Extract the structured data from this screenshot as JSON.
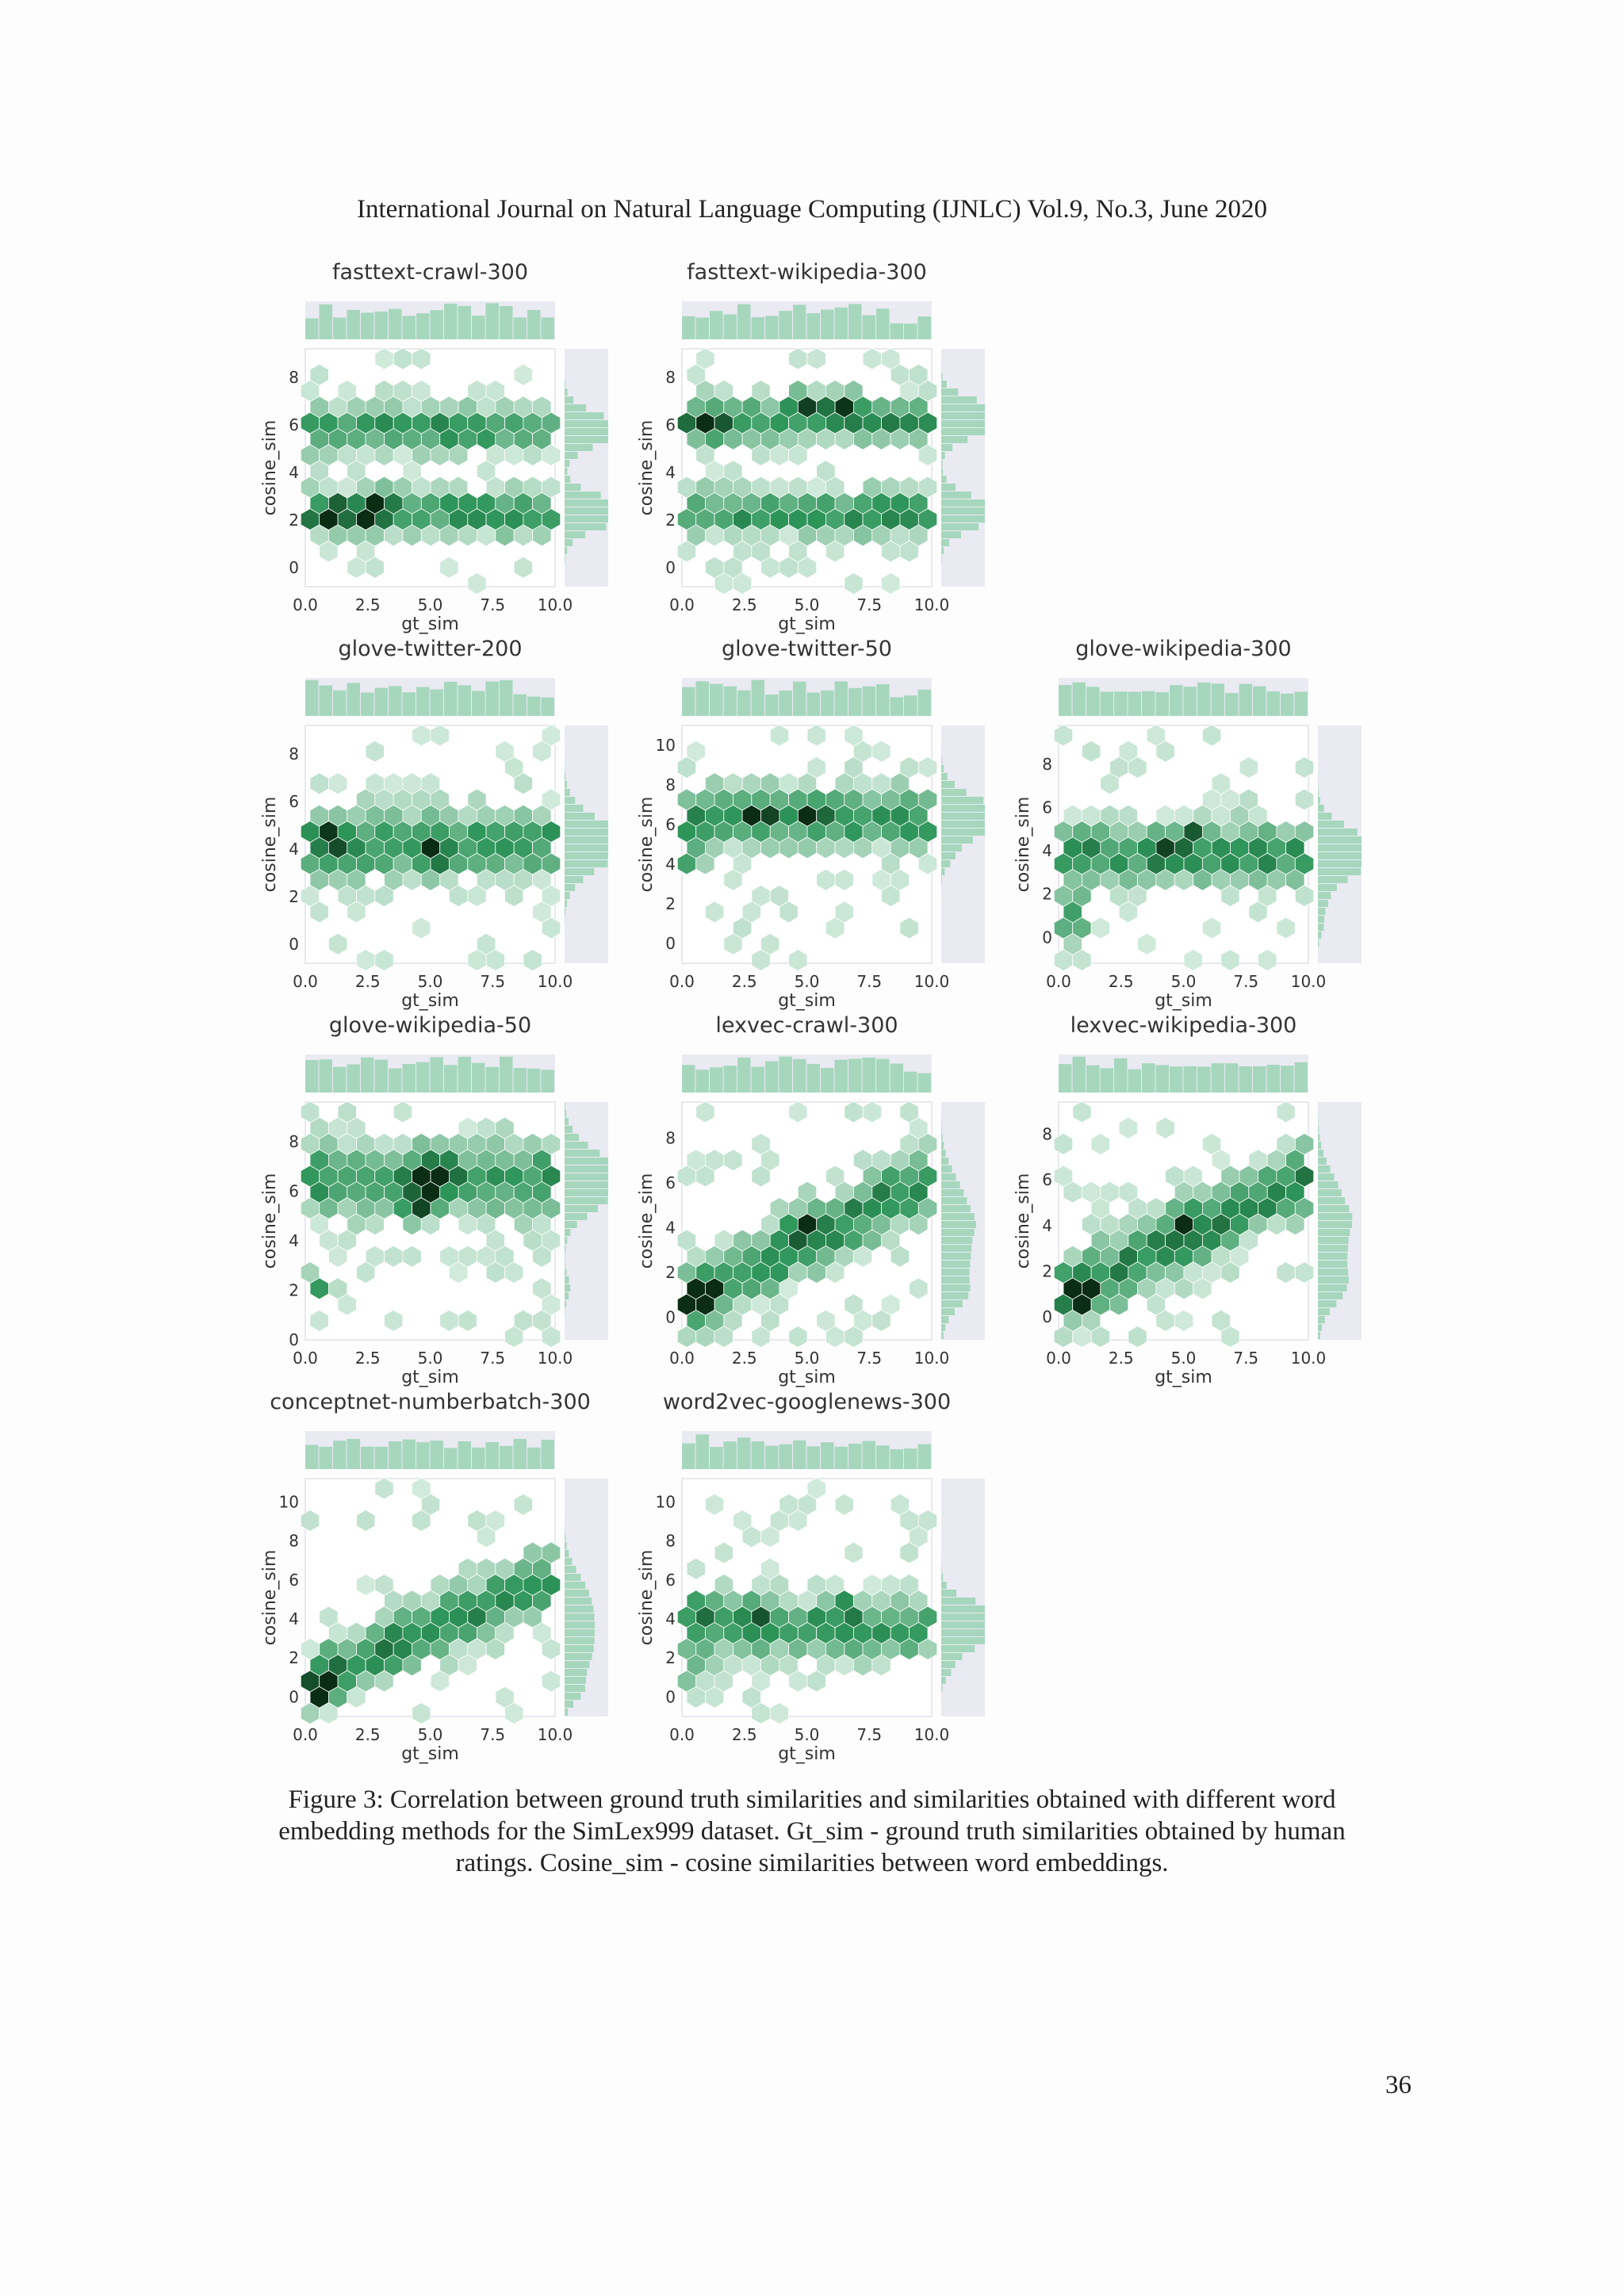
{
  "header": {
    "text": "International Journal on Natural Language Computing (IJNLC) Vol.9, No.3, June 2020"
  },
  "caption": {
    "text": "Figure 3: Correlation between ground truth similarities and similarities obtained with different word embedding methods for the SimLex999 dataset. Gt_sim - ground truth similarities obtained by human ratings. Cosine_sim - cosine similarities between word embeddings."
  },
  "page_number": "36",
  "colors": {
    "hex_light": "#e6f5ec",
    "hex_dark": "#0a2d14",
    "marginal_fill": "#a6d7bd",
    "marginal_bg": "#eaeaf2"
  },
  "chart_data": [
    {
      "type": "heatmap",
      "title": "fasttext-crawl-300",
      "xlabel": "gt_sim",
      "ylabel": "cosine_sim",
      "xticks": [
        "0.0",
        "2.5",
        "5.0",
        "7.5",
        "10.0"
      ],
      "yticks": [
        "0",
        "2",
        "4",
        "6",
        "8"
      ],
      "xlim": [
        0,
        10
      ],
      "ylim": [
        -0.8,
        9.2
      ],
      "pattern": "two-bands",
      "peaks": [
        [
          1,
          2.3
        ],
        [
          2.5,
          2.3
        ],
        [
          3,
          2.7
        ]
      ],
      "band_centers": [
        2.3,
        5.8
      ],
      "marginal": "bimodal"
    },
    {
      "type": "heatmap",
      "title": "fasttext-wikipedia-300",
      "xlabel": "gt_sim",
      "ylabel": "cosine_sim",
      "xticks": [
        "0.0",
        "2.5",
        "5.0",
        "7.5",
        "10.0"
      ],
      "yticks": [
        "0",
        "2",
        "4",
        "6",
        "8"
      ],
      "xlim": [
        0,
        10
      ],
      "ylim": [
        -0.8,
        9.2
      ],
      "pattern": "two-bands",
      "peaks": [
        [
          5,
          6.9
        ],
        [
          6.5,
          6.9
        ],
        [
          1,
          6
        ]
      ],
      "band_centers": [
        2.3,
        6.2
      ],
      "marginal": "bimodal"
    },
    {
      "type": "heatmap",
      "title": "glove-twitter-200",
      "xlabel": "gt_sim",
      "ylabel": "cosine_sim",
      "xticks": [
        "0.0",
        "2.5",
        "5.0",
        "7.5",
        "10.0"
      ],
      "yticks": [
        "0",
        "2",
        "4",
        "6",
        "8"
      ],
      "xlim": [
        0,
        10
      ],
      "ylim": [
        -0.8,
        9.2
      ],
      "pattern": "band",
      "peaks": [
        [
          1,
          4.6
        ],
        [
          5,
          3.9
        ]
      ],
      "band_centers": [
        4.2
      ],
      "marginal": "unimodal"
    },
    {
      "type": "heatmap",
      "title": "glove-twitter-50",
      "xlabel": "gt_sim",
      "ylabel": "cosine_sim",
      "xticks": [
        "0.0",
        "2.5",
        "5.0",
        "7.5",
        "10.0"
      ],
      "yticks": [
        "0",
        "2",
        "4",
        "6",
        "8",
        "10"
      ],
      "xlim": [
        0,
        10
      ],
      "ylim": [
        -1,
        11
      ],
      "pattern": "band",
      "peaks": [
        [
          0.5,
          4.2
        ],
        [
          3,
          6.6
        ],
        [
          5,
          6.6
        ]
      ],
      "band_centers": [
        6.3
      ],
      "marginal": "unimodal"
    },
    {
      "type": "heatmap",
      "title": "glove-wikipedia-300",
      "xlabel": "gt_sim",
      "ylabel": "cosine_sim",
      "xticks": [
        "0.0",
        "2.5",
        "5.0",
        "7.5",
        "10.0"
      ],
      "yticks": [
        "0",
        "2",
        "4",
        "6",
        "8"
      ],
      "xlim": [
        0,
        10
      ],
      "ylim": [
        -1.2,
        9.8
      ],
      "pattern": "band",
      "peaks": [
        [
          0.5,
          1.5
        ],
        [
          0.5,
          0.5
        ],
        [
          5.5,
          5
        ],
        [
          4.5,
          4
        ]
      ],
      "band_centers": [
        3.8
      ],
      "marginal": "unimodal"
    },
    {
      "type": "heatmap",
      "title": "glove-wikipedia-50",
      "xlabel": "gt_sim",
      "ylabel": "cosine_sim",
      "xticks": [
        "0.0",
        "2.5",
        "5.0",
        "7.5",
        "10.0"
      ],
      "yticks": [
        "0",
        "2",
        "4",
        "6",
        "8"
      ],
      "xlim": [
        0,
        10
      ],
      "ylim": [
        0,
        9.6
      ],
      "pattern": "band",
      "peaks": [
        [
          0.5,
          2.1
        ],
        [
          5.3,
          6.7
        ],
        [
          5,
          6.4
        ],
        [
          4.5,
          5.2
        ]
      ],
      "band_centers": [
        6.5
      ],
      "marginal": "unimodal"
    },
    {
      "type": "heatmap",
      "title": "lexvec-crawl-300",
      "xlabel": "gt_sim",
      "ylabel": "cosine_sim",
      "xticks": [
        "0.0",
        "2.5",
        "5.0",
        "7.5",
        "10.0"
      ],
      "yticks": [
        "0",
        "2",
        "4",
        "6",
        "8"
      ],
      "xlim": [
        0,
        10
      ],
      "ylim": [
        -1,
        9.6
      ],
      "pattern": "diagonal",
      "peaks": [
        [
          0.5,
          0.7
        ],
        [
          1,
          1.2
        ],
        [
          5,
          4.2
        ]
      ],
      "band_centers": [
        3.8
      ],
      "marginal": "unimodal"
    },
    {
      "type": "heatmap",
      "title": "lexvec-wikipedia-300",
      "xlabel": "gt_sim",
      "ylabel": "cosine_sim",
      "xticks": [
        "0.0",
        "2.5",
        "5.0",
        "7.5",
        "10.0"
      ],
      "yticks": [
        "0",
        "2",
        "4",
        "6",
        "8"
      ],
      "xlim": [
        0,
        10
      ],
      "ylim": [
        -1,
        9.4
      ],
      "pattern": "diagonal",
      "peaks": [
        [
          0.5,
          1.5
        ],
        [
          1,
          0.8
        ],
        [
          5,
          4.3
        ]
      ],
      "band_centers": [
        3.8
      ],
      "marginal": "unimodal"
    },
    {
      "type": "heatmap",
      "title": "conceptnet-numberbatch-300",
      "xlabel": "gt_sim",
      "ylabel": "cosine_sim",
      "xticks": [
        "0.0",
        "2.5",
        "5.0",
        "7.5",
        "10.0"
      ],
      "yticks": [
        "0",
        "2",
        "4",
        "6",
        "8",
        "10"
      ],
      "xlim": [
        0,
        10
      ],
      "ylim": [
        -1,
        11.2
      ],
      "pattern": "diagonal",
      "peaks": [
        [
          0.5,
          0
        ],
        [
          1,
          0.5
        ]
      ],
      "band_centers": [
        3.5
      ],
      "marginal": "unimodal"
    },
    {
      "type": "heatmap",
      "title": "word2vec-googlenews-300",
      "xlabel": "gt_sim",
      "ylabel": "cosine_sim",
      "xticks": [
        "0.0",
        "2.5",
        "5.0",
        "7.5",
        "10.0"
      ],
      "yticks": [
        "0",
        "2",
        "4",
        "6",
        "8",
        "10"
      ],
      "xlim": [
        0,
        10
      ],
      "ylim": [
        -1,
        11.2
      ],
      "pattern": "band",
      "peaks": [
        [
          0.5,
          1.3
        ],
        [
          1,
          4.6
        ],
        [
          3,
          4.6
        ],
        [
          6.5,
          4.6
        ]
      ],
      "band_centers": [
        3.5
      ],
      "marginal": "unimodal"
    }
  ]
}
